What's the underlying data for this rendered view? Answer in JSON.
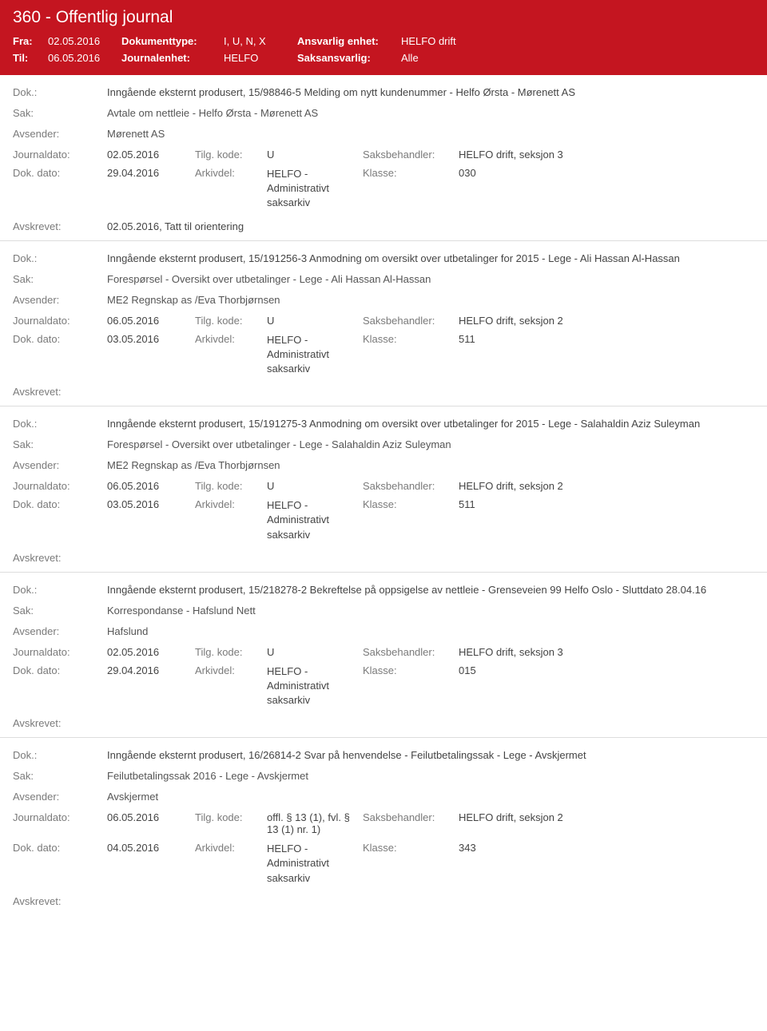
{
  "header": {
    "title": "360 - Offentlig journal",
    "fra_label": "Fra:",
    "fra_val": "02.05.2016",
    "til_label": "Til:",
    "til_val": "06.05.2016",
    "doktype_label": "Dokumenttype:",
    "doktype_val": "I, U, N, X",
    "journalenhet_label": "Journalenhet:",
    "journalenhet_val": "HELFO",
    "ansvarlig_label": "Ansvarlig enhet:",
    "ansvarlig_val": "HELFO drift",
    "saksansvarlig_label": "Saksansvarlig:",
    "saksansvarlig_val": "Alle"
  },
  "labels": {
    "dok": "Dok.:",
    "sak": "Sak:",
    "avsender": "Avsender:",
    "journaldato": "Journaldato:",
    "tilgkode": "Tilg. kode:",
    "saksbehandler": "Saksbehandler:",
    "dokdato": "Dok. dato:",
    "arkivdel": "Arkivdel:",
    "klasse": "Klasse:",
    "avskrevet": "Avskrevet:"
  },
  "arkivdel_value": "HELFO - Administrativt saksarkiv",
  "entries": [
    {
      "dok": "Inngående eksternt produsert, 15/98846-5 Melding om nytt kundenummer - Helfo Ørsta - Mørenett AS",
      "sak": "Avtale om nettleie - Helfo Ørsta - Mørenett AS",
      "avsender": "Mørenett AS",
      "journaldato": "02.05.2016",
      "tilgkode": "U",
      "saksbehandler": "HELFO drift, seksjon 3",
      "dokdato": "29.04.2016",
      "klasse": "030",
      "avskrevet": "02.05.2016, Tatt til orientering"
    },
    {
      "dok": "Inngående eksternt produsert, 15/191256-3 Anmodning om oversikt over utbetalinger for 2015 - Lege - Ali Hassan Al-Hassan",
      "sak": "Forespørsel - Oversikt over utbetalinger - Lege - Ali Hassan Al-Hassan",
      "avsender": "ME2 Regnskap as /Eva Thorbjørnsen",
      "journaldato": "06.05.2016",
      "tilgkode": "U",
      "saksbehandler": "HELFO drift, seksjon 2",
      "dokdato": "03.05.2016",
      "klasse": "511",
      "avskrevet": ""
    },
    {
      "dok": "Inngående eksternt produsert, 15/191275-3 Anmodning om oversikt over utbetalinger for 2015 - Lege - Salahaldin Aziz Suleyman",
      "sak": "Forespørsel - Oversikt over utbetalinger - Lege - Salahaldin Aziz Suleyman",
      "avsender": "ME2 Regnskap as /Eva Thorbjørnsen",
      "journaldato": "06.05.2016",
      "tilgkode": "U",
      "saksbehandler": "HELFO drift, seksjon 2",
      "dokdato": "03.05.2016",
      "klasse": "511",
      "avskrevet": ""
    },
    {
      "dok": "Inngående eksternt produsert, 15/218278-2 Bekreftelse på oppsigelse av nettleie - Grenseveien 99 Helfo Oslo - Sluttdato 28.04.16",
      "sak": "Korrespondanse - Hafslund Nett",
      "avsender": "Hafslund",
      "journaldato": "02.05.2016",
      "tilgkode": "U",
      "saksbehandler": "HELFO drift, seksjon 3",
      "dokdato": "29.04.2016",
      "klasse": "015",
      "avskrevet": ""
    },
    {
      "dok": "Inngående eksternt produsert, 16/26814-2 Svar på henvendelse - Feilutbetalingssak - Lege - Avskjermet",
      "sak": "Feilutbetalingssak 2016 - Lege - Avskjermet",
      "avsender": "Avskjermet",
      "journaldato": "06.05.2016",
      "tilgkode": "offl. § 13 (1), fvl. § 13 (1) nr. 1)",
      "saksbehandler": "HELFO drift, seksjon 2",
      "dokdato": "04.05.2016",
      "klasse": "343",
      "avskrevet": ""
    }
  ]
}
